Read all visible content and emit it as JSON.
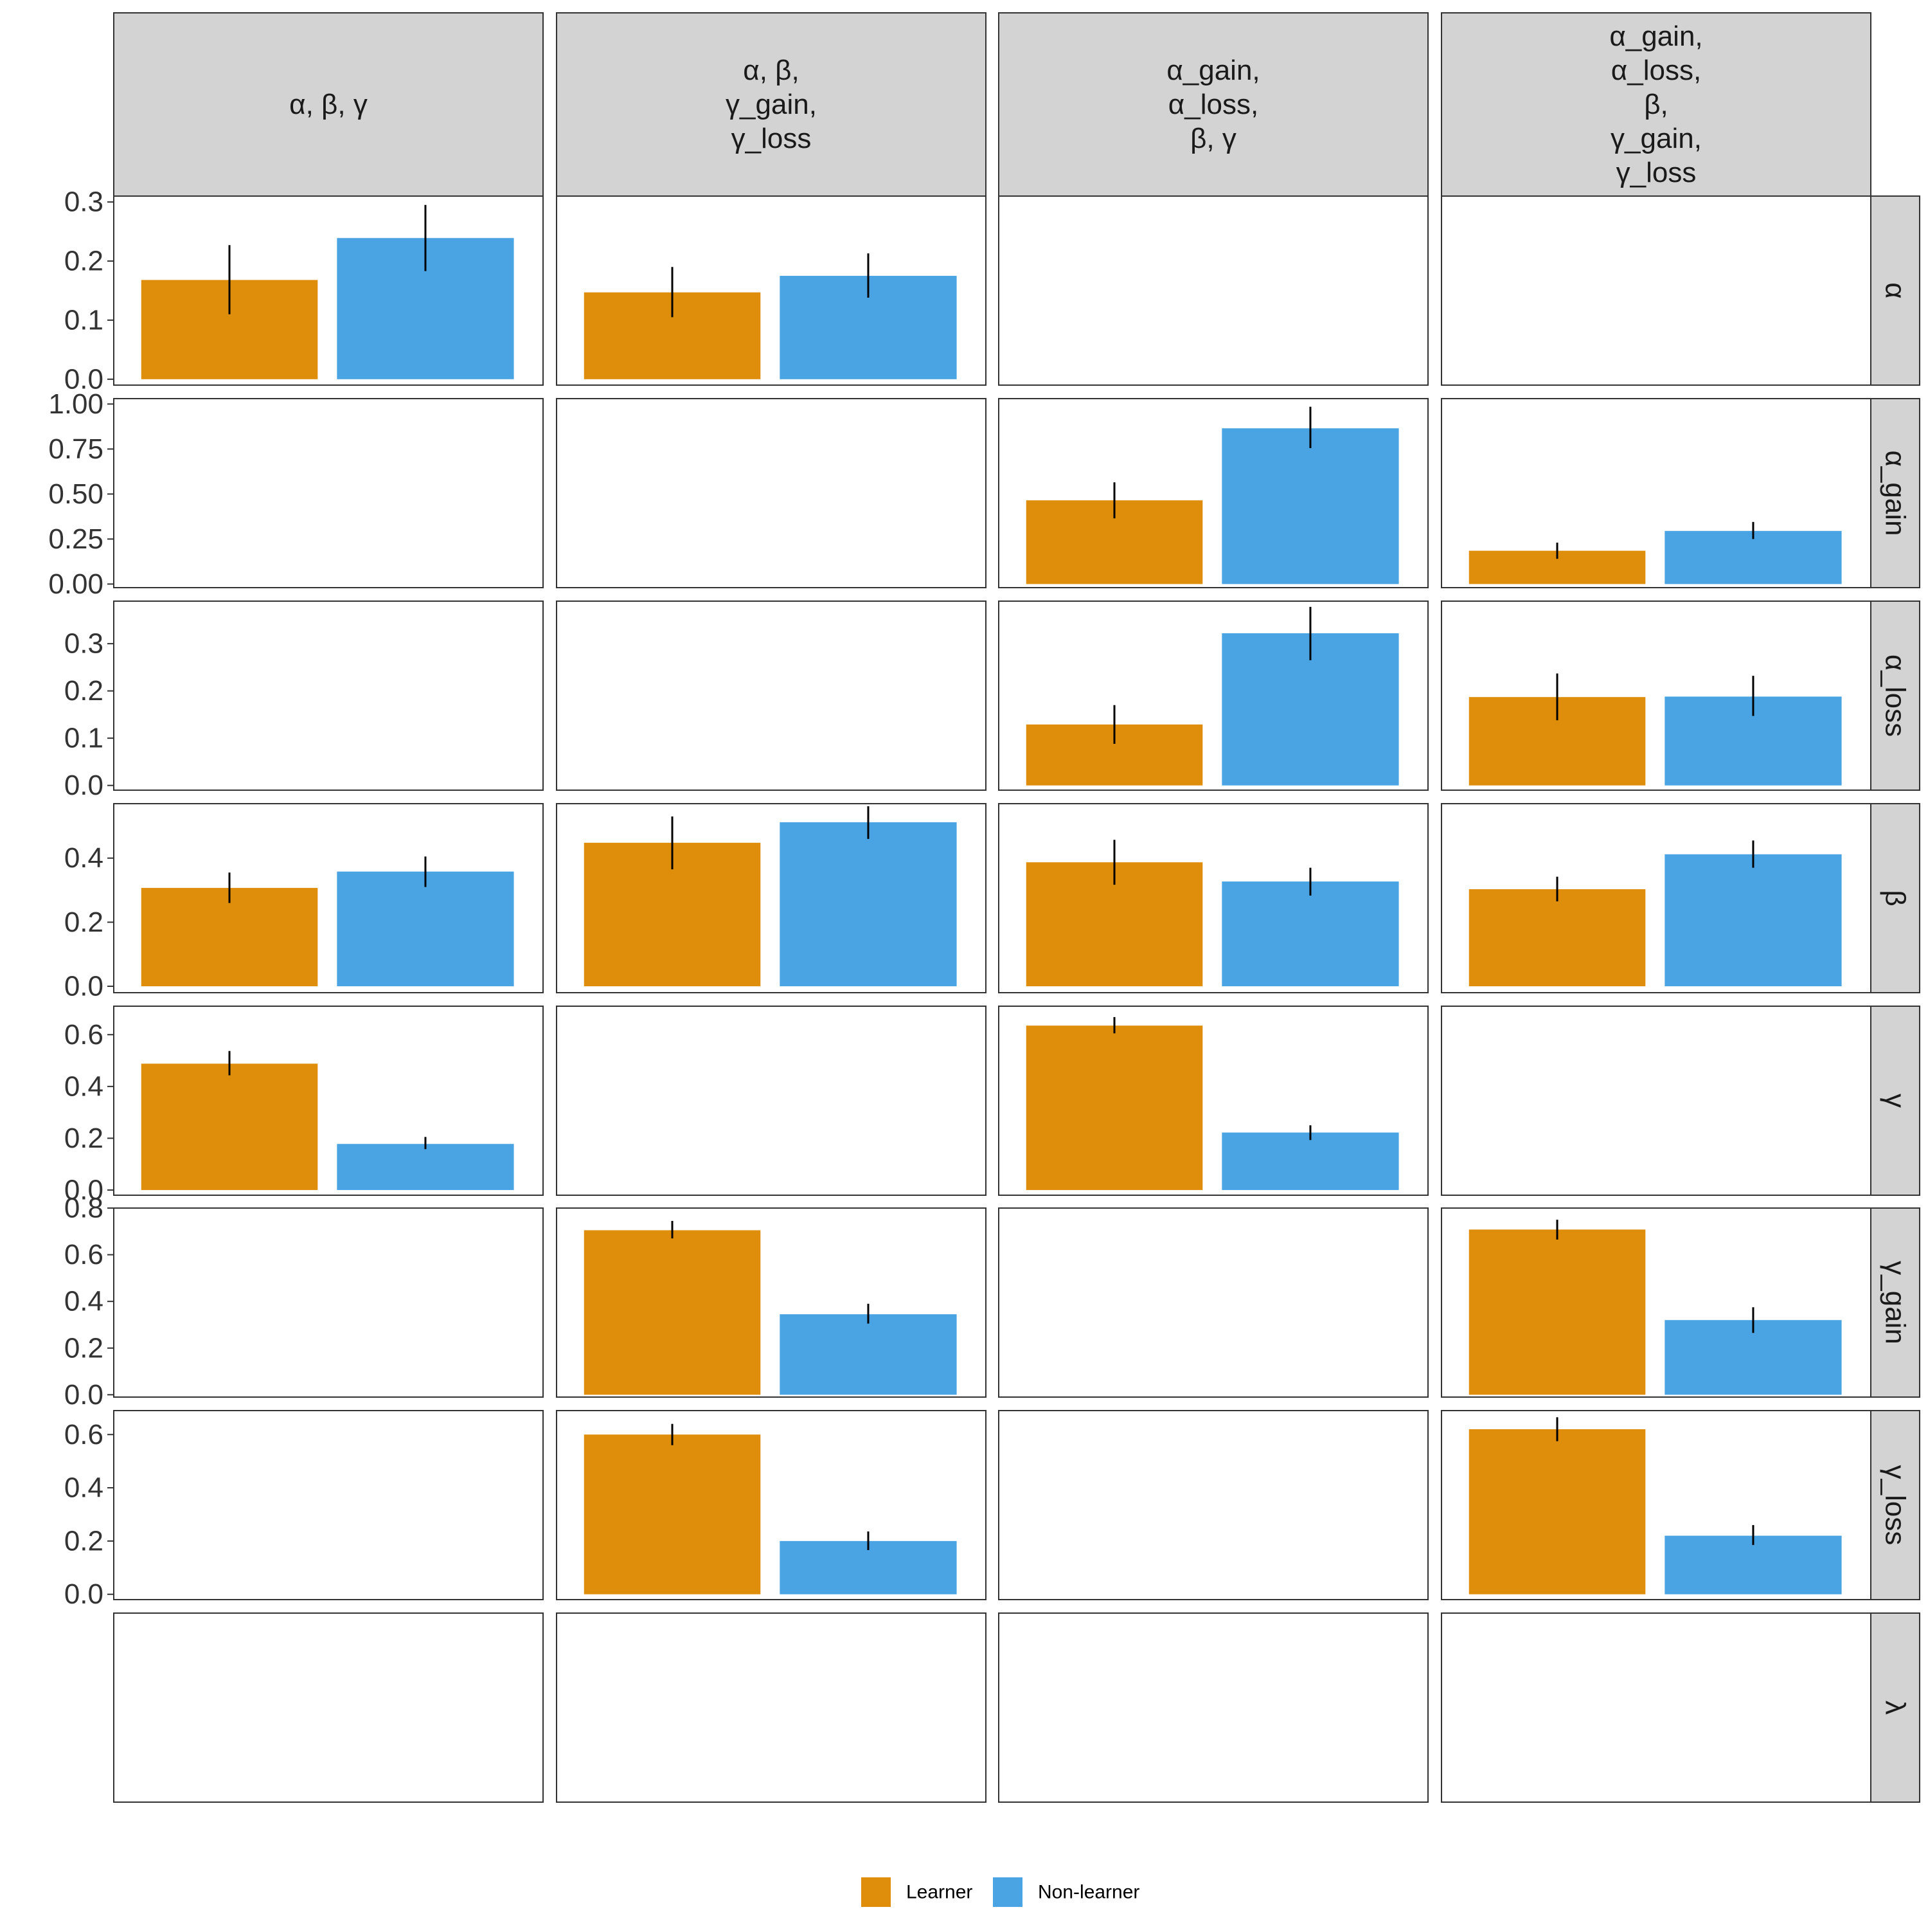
{
  "chart_data": {
    "type": "bar",
    "layout": "facet-grid",
    "columns": [
      {
        "key": "c1",
        "label_lines": [
          "α, β, γ"
        ]
      },
      {
        "key": "c2",
        "label_lines": [
          "α, β,",
          "γ_gain,",
          "γ_loss"
        ]
      },
      {
        "key": "c3",
        "label_lines": [
          "α_gain,",
          "α_loss,",
          "β, γ"
        ]
      },
      {
        "key": "c4",
        "label_lines": [
          "α_gain,",
          "α_loss,",
          "β,",
          "γ_gain,",
          "γ_loss"
        ]
      }
    ],
    "rows": [
      {
        "key": "alpha",
        "label": "α",
        "ylim": [
          -0.01,
          0.31
        ],
        "ticks": [
          0.0,
          0.1,
          0.2,
          0.3
        ],
        "tick_labels": [
          "0.0",
          "0.1",
          "0.2",
          "0.3"
        ]
      },
      {
        "key": "alpha_gain",
        "label": "α_gain",
        "ylim": [
          -0.02,
          1.03
        ],
        "ticks": [
          0.0,
          0.25,
          0.5,
          0.75,
          1.0
        ],
        "tick_labels": [
          "0.00",
          "0.25",
          "0.50",
          "0.75",
          "1.00"
        ]
      },
      {
        "key": "alpha_loss",
        "label": "α_loss",
        "ylim": [
          -0.01,
          0.39
        ],
        "ticks": [
          0.0,
          0.1,
          0.2,
          0.3
        ],
        "tick_labels": [
          "0.0",
          "0.1",
          "0.2",
          "0.3"
        ]
      },
      {
        "key": "beta",
        "label": "β",
        "ylim": [
          -0.02,
          0.57
        ],
        "ticks": [
          0.0,
          0.2,
          0.4
        ],
        "tick_labels": [
          "0.0",
          "0.2",
          "0.4"
        ]
      },
      {
        "key": "gamma",
        "label": "γ",
        "ylim": [
          -0.02,
          0.71
        ],
        "ticks": [
          0.0,
          0.2,
          0.4,
          0.6
        ],
        "tick_labels": [
          "0.0",
          "0.2",
          "0.4",
          "0.6"
        ]
      },
      {
        "key": "gamma_gain",
        "label": "γ_gain",
        "ylim": [
          -0.01,
          0.8
        ],
        "ticks": [
          0.0,
          0.2,
          0.4,
          0.6,
          0.8
        ],
        "tick_labels": [
          "0.0",
          "0.2",
          "0.4",
          "0.6",
          "0.8"
        ]
      },
      {
        "key": "gamma_loss",
        "label": "γ_loss",
        "ylim": [
          -0.02,
          0.69
        ],
        "ticks": [
          0.0,
          0.2,
          0.4,
          0.6
        ],
        "tick_labels": [
          "0.0",
          "0.2",
          "0.4",
          "0.6"
        ]
      },
      {
        "key": "lambda",
        "label": "λ",
        "ylim": [
          0,
          1
        ],
        "ticks": [],
        "tick_labels": []
      }
    ],
    "series": [
      {
        "name": "Learner",
        "color": "#DF8E0B"
      },
      {
        "name": "Non-learner",
        "color": "#4AA4E3"
      }
    ],
    "cells": [
      {
        "row": "alpha",
        "col": "c1",
        "values": [
          0.168,
          0.239
        ],
        "err_low": [
          0.11,
          0.183
        ],
        "err_high": [
          0.227,
          0.295
        ]
      },
      {
        "row": "alpha",
        "col": "c2",
        "values": [
          0.147,
          0.175
        ],
        "err_low": [
          0.105,
          0.138
        ],
        "err_high": [
          0.19,
          0.213
        ]
      },
      {
        "row": "alpha_gain",
        "col": "c3",
        "values": [
          0.465,
          0.865
        ],
        "err_low": [
          0.365,
          0.755
        ],
        "err_high": [
          0.565,
          0.985
        ]
      },
      {
        "row": "alpha_gain",
        "col": "c4",
        "values": [
          0.185,
          0.295
        ],
        "err_low": [
          0.14,
          0.25
        ],
        "err_high": [
          0.23,
          0.345
        ]
      },
      {
        "row": "alpha_loss",
        "col": "c3",
        "values": [
          0.129,
          0.322
        ],
        "err_low": [
          0.088,
          0.265
        ],
        "err_high": [
          0.17,
          0.378
        ]
      },
      {
        "row": "alpha_loss",
        "col": "c4",
        "values": [
          0.187,
          0.188
        ],
        "err_low": [
          0.138,
          0.147
        ],
        "err_high": [
          0.237,
          0.232
        ]
      },
      {
        "row": "beta",
        "col": "c1",
        "values": [
          0.307,
          0.358
        ],
        "err_low": [
          0.26,
          0.31
        ],
        "err_high": [
          0.355,
          0.405
        ]
      },
      {
        "row": "beta",
        "col": "c2",
        "values": [
          0.448,
          0.512
        ],
        "err_low": [
          0.365,
          0.46
        ],
        "err_high": [
          0.53,
          0.562
        ]
      },
      {
        "row": "beta",
        "col": "c3",
        "values": [
          0.387,
          0.327
        ],
        "err_low": [
          0.317,
          0.283
        ],
        "err_high": [
          0.457,
          0.37
        ]
      },
      {
        "row": "beta",
        "col": "c4",
        "values": [
          0.303,
          0.412
        ],
        "err_low": [
          0.265,
          0.37
        ],
        "err_high": [
          0.342,
          0.455
        ]
      },
      {
        "row": "gamma",
        "col": "c1",
        "values": [
          0.488,
          0.178
        ],
        "err_low": [
          0.443,
          0.158
        ],
        "err_high": [
          0.537,
          0.205
        ]
      },
      {
        "row": "gamma",
        "col": "c3",
        "values": [
          0.635,
          0.222
        ],
        "err_low": [
          0.605,
          0.193
        ],
        "err_high": [
          0.668,
          0.25
        ]
      },
      {
        "row": "gamma_gain",
        "col": "c2",
        "values": [
          0.705,
          0.345
        ],
        "err_low": [
          0.67,
          0.305
        ],
        "err_high": [
          0.745,
          0.39
        ]
      },
      {
        "row": "gamma_gain",
        "col": "c4",
        "values": [
          0.708,
          0.32
        ],
        "err_low": [
          0.665,
          0.265
        ],
        "err_high": [
          0.75,
          0.375
        ]
      },
      {
        "row": "gamma_loss",
        "col": "c2",
        "values": [
          0.6,
          0.2
        ],
        "err_low": [
          0.56,
          0.166
        ],
        "err_high": [
          0.64,
          0.236
        ]
      },
      {
        "row": "gamma_loss",
        "col": "c4",
        "values": [
          0.62,
          0.22
        ],
        "err_low": [
          0.575,
          0.185
        ],
        "err_high": [
          0.665,
          0.26
        ]
      }
    ],
    "legend": {
      "position": "bottom",
      "items": [
        "Learner",
        "Non-learner"
      ]
    },
    "grid": false,
    "title": "",
    "xlabel": "",
    "ylabel": ""
  }
}
